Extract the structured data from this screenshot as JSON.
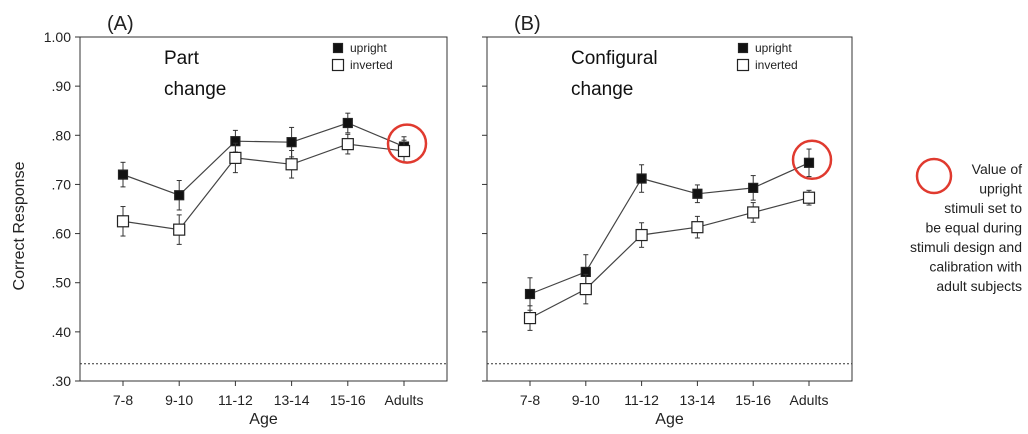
{
  "figure": {
    "ylabel": "Correct Response",
    "note_lines": [
      "Value of",
      "upright",
      "stimuli set to",
      "be equal during",
      "stimuli design and",
      "calibration with",
      "adult subjects"
    ],
    "highlight_color": "#e03a2f",
    "chance_line_y": 0.335
  },
  "chart_data": [
    {
      "type": "line",
      "panel_label": "(A)",
      "title_lines": [
        "Part",
        "change"
      ],
      "xlabel": "Age",
      "ylabel": "Correct Response",
      "categories": [
        "7-8",
        "9-10",
        "11-12",
        "13-14",
        "15-16",
        "Adults"
      ],
      "ylim": [
        0.3,
        1.0
      ],
      "yticks": [
        0.3,
        0.4,
        0.5,
        0.6,
        0.7,
        0.8,
        0.9,
        1.0
      ],
      "ytick_labels": [
        ".30",
        ".40",
        ".50",
        ".60",
        ".70",
        ".80",
        ".90",
        "1.00"
      ],
      "legend_position": "top-right",
      "highlight_index": 5,
      "series": [
        {
          "name": "upright",
          "marker": "filled-square",
          "color": "#111111",
          "values": [
            0.72,
            0.678,
            0.788,
            0.786,
            0.825,
            0.777
          ],
          "errors": [
            0.025,
            0.03,
            0.022,
            0.03,
            0.02,
            0.02
          ]
        },
        {
          "name": "inverted",
          "marker": "open-square",
          "color": "#111111",
          "values": [
            0.625,
            0.608,
            0.754,
            0.741,
            0.782,
            0.768
          ],
          "errors": [
            0.03,
            0.03,
            0.03,
            0.028,
            0.02,
            0.022
          ]
        }
      ]
    },
    {
      "type": "line",
      "panel_label": "(B)",
      "title_lines": [
        "Configural",
        "change"
      ],
      "xlabel": "Age",
      "categories": [
        "7-8",
        "9-10",
        "11-12",
        "13-14",
        "15-16",
        "Adults"
      ],
      "ylim": [
        0.3,
        1.0
      ],
      "yticks": [
        0.3,
        0.4,
        0.5,
        0.6,
        0.7,
        0.8,
        0.9,
        1.0
      ],
      "legend_position": "top-right",
      "highlight_index": 5,
      "series": [
        {
          "name": "upright",
          "marker": "filled-square",
          "color": "#111111",
          "values": [
            0.477,
            0.522,
            0.712,
            0.681,
            0.693,
            0.744
          ],
          "errors": [
            0.033,
            0.035,
            0.028,
            0.018,
            0.025,
            0.028
          ]
        },
        {
          "name": "inverted",
          "marker": "open-square",
          "color": "#111111",
          "values": [
            0.428,
            0.487,
            0.597,
            0.613,
            0.643,
            0.673
          ],
          "errors": [
            0.025,
            0.03,
            0.025,
            0.022,
            0.02,
            0.015
          ]
        }
      ]
    }
  ]
}
